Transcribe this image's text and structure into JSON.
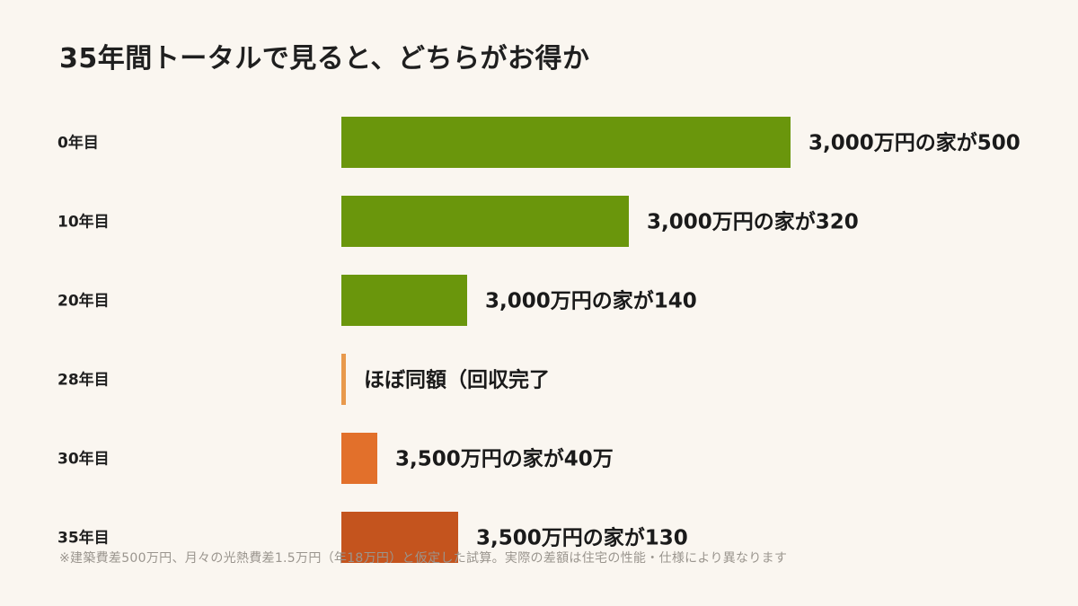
{
  "title": "35年間トータルで見ると、どちらがお得か",
  "footnote": "※建築費差500万円、月々の光熱費差1.5万円（年18万円）と仮定した試算。実際の差額は住宅の性能・仕様により異なります",
  "colors": {
    "background": "#faf6f0",
    "green": "#6a960c",
    "light_orange": "#e8994c",
    "orange": "#e2702b",
    "dark_orange": "#c4541e"
  },
  "chart_data": {
    "type": "bar",
    "orientation": "horizontal",
    "title": "35年間トータルで見ると、どちらがお得か",
    "categories": [
      "0年目",
      "10年目",
      "20年目",
      "28年目",
      "30年目",
      "35年目"
    ],
    "values": [
      500,
      320,
      140,
      5,
      40,
      130
    ],
    "unit": "万円",
    "data_labels": [
      "3,000万円の家が500",
      "3,000万円の家が320",
      "3,000万円の家が140",
      "ほぼ同額（回収完了",
      "3,500万円の家が40万",
      "3,500万円の家が130"
    ],
    "bar_colors": [
      "#6a960c",
      "#6a960c",
      "#6a960c",
      "#e8994c",
      "#e2702b",
      "#c4541e"
    ],
    "xlim": [
      0,
      500
    ],
    "grid": false,
    "legend": "none"
  }
}
